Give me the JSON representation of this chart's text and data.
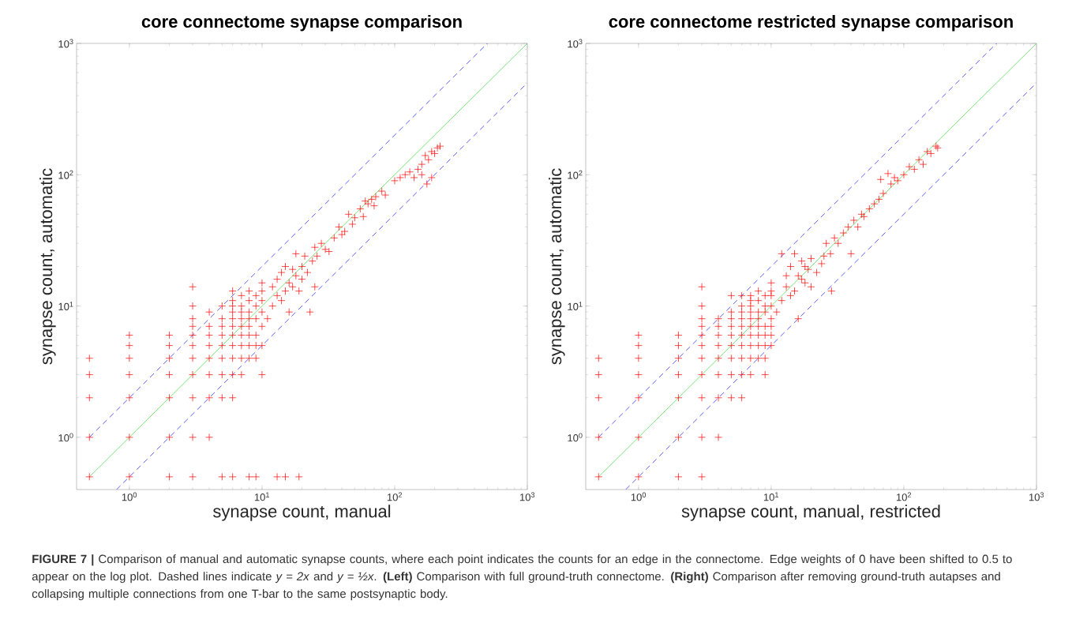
{
  "chart_data": [
    {
      "type": "scatter",
      "title": "core connectome synapse comparison",
      "xlabel": "synapse count, manual",
      "ylabel": "synapse count, automatic",
      "log": "xy",
      "xlim": [
        0.4,
        1000
      ],
      "ylim": [
        0.4,
        1000
      ],
      "xticks": [
        {
          "value": 1,
          "label": "10$^{0}$"
        },
        {
          "value": 10,
          "label": "10$^{1}$"
        },
        {
          "value": 100,
          "label": "10$^{2}$"
        },
        {
          "value": 1000,
          "label": "10$^{3}$"
        }
      ],
      "yticks": [
        {
          "value": 1,
          "label": "10$^{0}$"
        },
        {
          "value": 10,
          "label": "10$^{1}$"
        },
        {
          "value": 100,
          "label": "10$^{2}$"
        },
        {
          "value": 1000,
          "label": "10$^{3}$"
        }
      ],
      "annotations": [
        "**FIGURE 7 |** Comparison of manual and automatic synapse counts, where each point indicates the counts for an edge in the connectome. Edge weights of 0 have been shifted to 0.5 to appear on the log plot. Dashed lines indicate *y = 2x* and *y = ½x*. **(Left)** Comparison with full ground-truth connectome. **(Right)** Comparison after removing ground-truth autapses and collapsing multiple connections from one T-bar to the same postsynaptic body."
      ],
      "series": [
        {
          "type": "scatter",
          "color": "#ff0000",
          "marker": "cross",
          "x": [
            0.5,
            0.5,
            0.5,
            0.5,
            0.5,
            1,
            1,
            1,
            1,
            1,
            1,
            1,
            2,
            2,
            2,
            2,
            2,
            2,
            2,
            3,
            3,
            3,
            3,
            3,
            3,
            3,
            3,
            3,
            3,
            3,
            4,
            4,
            4,
            4,
            4,
            4,
            4,
            4,
            5,
            5,
            5,
            5,
            5,
            5,
            5,
            5,
            5,
            6,
            6,
            6,
            6,
            6,
            6,
            6,
            6,
            6,
            6,
            6,
            6,
            7,
            7,
            7,
            7,
            7,
            7,
            7,
            7,
            7,
            8,
            8,
            8,
            8,
            8,
            8,
            8,
            8,
            8,
            9,
            9,
            9,
            9,
            9,
            9,
            9,
            10,
            10,
            10,
            10,
            10,
            10,
            10,
            13,
            15,
            19,
            11,
            12,
            12,
            13,
            13,
            14,
            14,
            15,
            15,
            16,
            16,
            17,
            17,
            18,
            18,
            19,
            20,
            20,
            21,
            22,
            23,
            24,
            25,
            25,
            26,
            28,
            30,
            32,
            35,
            38,
            40,
            42,
            45,
            48,
            50,
            55,
            58,
            60,
            63,
            67,
            70,
            72,
            80,
            85,
            100,
            110,
            120,
            130,
            140,
            150,
            160,
            170,
            180,
            190,
            200,
            210,
            220,
            175,
            190,
            160
          ],
          "values": [
            0.5,
            1,
            2,
            3,
            4,
            0.5,
            1,
            2,
            3,
            4,
            5,
            6,
            0.5,
            1,
            2,
            3,
            4,
            5,
            6,
            0.5,
            1,
            2,
            3,
            4,
            5,
            6,
            7,
            8,
            10,
            14,
            1,
            2,
            3,
            4,
            5,
            6,
            7,
            9,
            0.5,
            2,
            3,
            4,
            5,
            6,
            7,
            8,
            10,
            0.5,
            2,
            3,
            4,
            5,
            6,
            7,
            8,
            9,
            10,
            11,
            13,
            3,
            4,
            5,
            6,
            7,
            8,
            9,
            10,
            12,
            0.5,
            4,
            5,
            6,
            7,
            8,
            9,
            11,
            13,
            0.5,
            4,
            5,
            6,
            8,
            10,
            12,
            3,
            5,
            7,
            9,
            11,
            13,
            15,
            0.5,
            0.5,
            0.5,
            8,
            10,
            14,
            12,
            16,
            11,
            18,
            13,
            20,
            9,
            15,
            14,
            19,
            17,
            25,
            13,
            20,
            16,
            24,
            18,
            9,
            22,
            14,
            28,
            24,
            30,
            27,
            26,
            33,
            40,
            35,
            37,
            50,
            42,
            47,
            55,
            48,
            63,
            60,
            65,
            58,
            68,
            75,
            70,
            90,
            95,
            100,
            105,
            95,
            110,
            100,
            140,
            130,
            150,
            145,
            160,
            165,
            85,
            95,
            120
          ]
        },
        {
          "type": "line",
          "color": "#55dd55",
          "marker": "none",
          "line_style": "solid",
          "x": [
            0.5,
            1000
          ],
          "values": [
            0.5,
            1000
          ]
        },
        {
          "type": "line",
          "color": "#3333ff",
          "marker": "none",
          "line_style": "dashed",
          "x": [
            0.5,
            500
          ],
          "values": [
            1,
            1000
          ]
        },
        {
          "type": "line",
          "color": "#3333ff",
          "marker": "none",
          "line_style": "dashed",
          "x": [
            0.8,
            1000
          ],
          "values": [
            0.4,
            500
          ]
        }
      ]
    },
    {
      "type": "scatter",
      "title": "core connectome restricted synapse comparison",
      "xlabel": "synapse count, manual, restricted",
      "ylabel": "synapse count, automatic",
      "log": "xy",
      "xlim": [
        0.4,
        1000
      ],
      "ylim": [
        0.4,
        1000
      ],
      "xticks": [
        {
          "value": 1,
          "label": "10$^{0}$"
        },
        {
          "value": 10,
          "label": "10$^{1}$"
        },
        {
          "value": 100,
          "label": "10$^{2}$"
        },
        {
          "value": 1000,
          "label": "10$^{3}$"
        }
      ],
      "yticks": [
        {
          "value": 1,
          "label": "10$^{0}$"
        },
        {
          "value": 10,
          "label": "10$^{1}$"
        },
        {
          "value": 100,
          "label": "10$^{2}$"
        },
        {
          "value": 1000,
          "label": "10$^{3}$"
        }
      ],
      "series": [
        {
          "type": "scatter",
          "color": "#ff0000",
          "marker": "cross",
          "x": [
            0.5,
            0.5,
            0.5,
            0.5,
            0.5,
            1,
            1,
            1,
            1,
            1,
            1,
            1,
            2,
            2,
            2,
            2,
            2,
            2,
            2,
            3,
            3,
            3,
            3,
            3,
            3,
            3,
            3,
            3,
            3,
            3,
            4,
            4,
            4,
            4,
            4,
            4,
            4,
            4,
            5,
            5,
            5,
            5,
            5,
            5,
            5,
            5,
            5,
            6,
            6,
            6,
            6,
            6,
            6,
            6,
            6,
            6,
            6,
            7,
            7,
            7,
            7,
            7,
            7,
            7,
            7,
            7,
            7,
            8,
            8,
            8,
            8,
            8,
            8,
            8,
            8,
            9,
            9,
            9,
            9,
            9,
            9,
            9,
            9,
            10,
            10,
            10,
            10,
            10,
            10,
            10,
            10,
            11,
            12,
            12,
            13,
            13,
            14,
            14,
            15,
            15,
            16,
            16,
            17,
            17,
            18,
            18,
            19,
            20,
            20,
            22,
            24,
            25,
            28.5,
            26,
            28,
            30,
            32,
            35,
            38,
            40,
            42,
            45,
            48,
            50,
            55,
            60,
            65,
            67,
            70,
            76,
            80,
            85,
            90,
            100,
            110,
            120,
            130,
            140,
            150,
            160,
            175,
            180
          ],
          "values": [
            0.5,
            1,
            2,
            3,
            4,
            0.5,
            1,
            2,
            3,
            4,
            5,
            6,
            0.5,
            1,
            2,
            3,
            4,
            5,
            6,
            0.5,
            1,
            2,
            3,
            4,
            5,
            6,
            7,
            8,
            10,
            14,
            1,
            2,
            3,
            4,
            5,
            6,
            7,
            8,
            2,
            3,
            4,
            5,
            6,
            7,
            8,
            9,
            12,
            2,
            3,
            4,
            5,
            6,
            7,
            8,
            9,
            10,
            12,
            3,
            4,
            5,
            6,
            7,
            8,
            9,
            10,
            11,
            12,
            4,
            5,
            6,
            7,
            8,
            9,
            11,
            13,
            3,
            4,
            5,
            6,
            7,
            9,
            10,
            12,
            5,
            6,
            7,
            8,
            10,
            12,
            13,
            15,
            9,
            25,
            11,
            14,
            17,
            12,
            20,
            25,
            13,
            8,
            17,
            16,
            22,
            15,
            20,
            19,
            14,
            23,
            18,
            21,
            24,
            13,
            30,
            25,
            33,
            30,
            36,
            40,
            25,
            45,
            40,
            50,
            48,
            55,
            60,
            65,
            92,
            72,
            102,
            85,
            95,
            90,
            100,
            115,
            110,
            130,
            120,
            150,
            145,
            165,
            160
          ]
        },
        {
          "type": "line",
          "color": "#55dd55",
          "marker": "none",
          "line_style": "solid",
          "x": [
            0.5,
            1000
          ],
          "values": [
            0.5,
            1000
          ]
        },
        {
          "type": "line",
          "color": "#3333ff",
          "marker": "none",
          "line_style": "dashed",
          "x": [
            0.5,
            500
          ],
          "values": [
            1,
            1000
          ]
        },
        {
          "type": "line",
          "color": "#3333ff",
          "marker": "none",
          "line_style": "dashed",
          "x": [
            0.8,
            1000
          ],
          "values": [
            0.4,
            500
          ]
        }
      ]
    }
  ]
}
